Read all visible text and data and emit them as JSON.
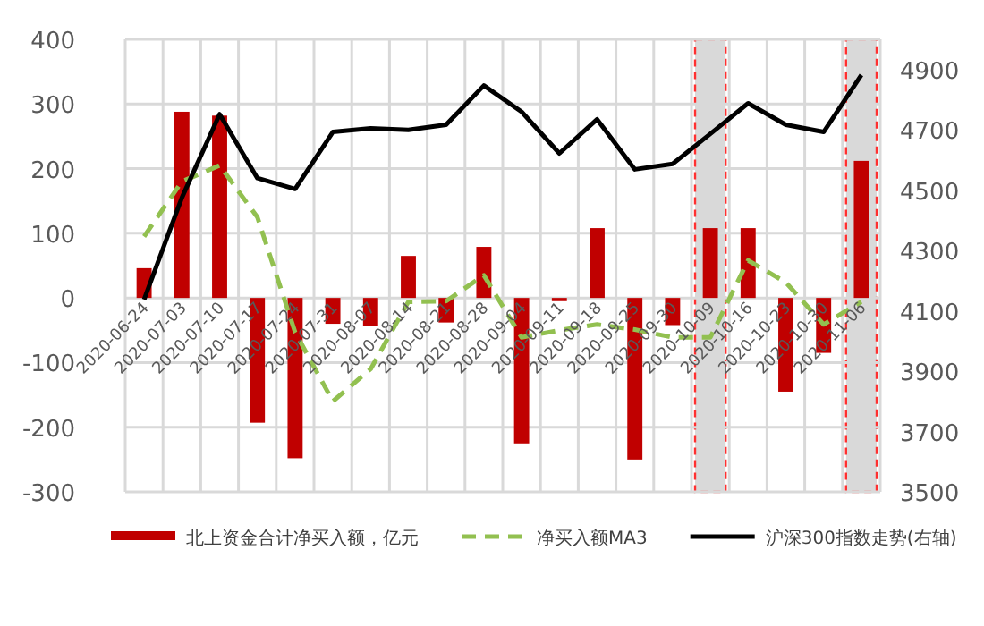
{
  "chart_data": {
    "type": "bar",
    "categories": [
      "2020-06-24",
      "2020-07-03",
      "2020-07-10",
      "2020-07-17",
      "2020-07-24",
      "2020-07-31",
      "2020-08-07",
      "2020-08-14",
      "2020-08-21",
      "2020-08-28",
      "2020-09-04",
      "2020-09-11",
      "2020-09-18",
      "2020-09-25",
      "2020-09-30",
      "2020-10-09",
      "2020-10-16",
      "2020-10-23",
      "2020-10-30",
      "2020-11-06"
    ],
    "series": [
      {
        "name": "北上资金合计净买入额，亿元",
        "color": "#c00000",
        "values": [
          46,
          288,
          282,
          -193,
          -248,
          -40,
          -43,
          65,
          -38,
          79,
          -225,
          -5,
          108,
          -250,
          -42,
          108,
          108,
          -145,
          -85,
          212
        ]
      },
      {
        "name": "净买入额MA3",
        "type": "line",
        "color": "#92c050",
        "line_style": "dashed",
        "values": [
          95,
          180,
          205,
          125,
          -53,
          -160,
          -110,
          -6,
          -5,
          35,
          -61,
          -50,
          -41,
          -49,
          -61,
          -61,
          58,
          24,
          -41,
          -6
        ]
      },
      {
        "name": "沪深300指数走势(右轴)",
        "type": "line",
        "color": "#000000",
        "axis": "y2",
        "values": [
          4138,
          4475,
          4752,
          4540,
          4504,
          4693,
          4705,
          4700,
          4717,
          4847,
          4760,
          4622,
          4735,
          4569,
          4587,
          4687,
          4788,
          4717,
          4693,
          4882
        ]
      }
    ],
    "ylim": [
      -300,
      400
    ],
    "yticks": [
      -300,
      -200,
      -100,
      0,
      100,
      200,
      300,
      400
    ],
    "y2lim": [
      3500,
      5000
    ],
    "y2ticks": [
      3500,
      3700,
      3900,
      4100,
      4300,
      4500,
      4700,
      4900
    ],
    "bands": [
      {
        "axis": "x",
        "from": "2020-10-09",
        "to": "2020-10-09",
        "color": "#d9d9d9"
      },
      {
        "axis": "x",
        "from": "2020-11-06",
        "to": "2020-11-06",
        "color": "#d9d9d9"
      }
    ],
    "grid": true,
    "legend": "bottom"
  }
}
